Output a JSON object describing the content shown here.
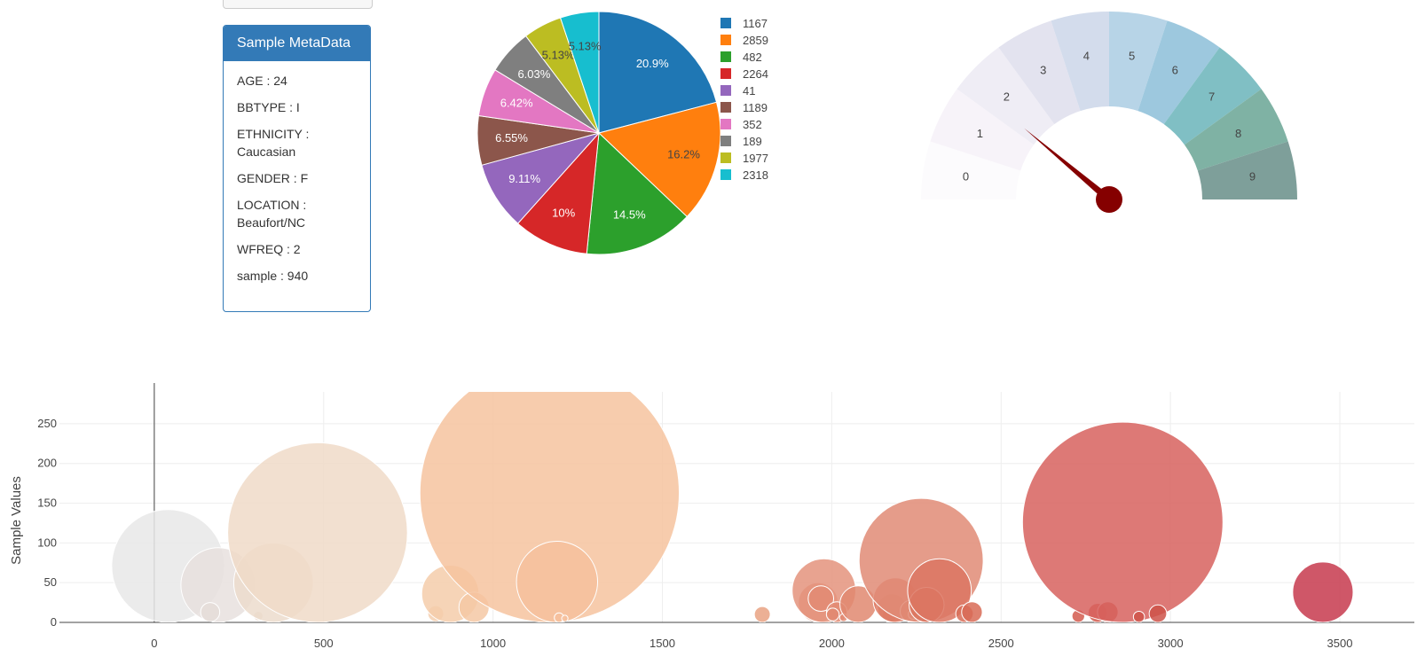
{
  "metadata": {
    "title": "Sample MetaData",
    "rows": [
      {
        "text": "AGE : 24"
      },
      {
        "text": "BBTYPE : I"
      },
      {
        "text": "ETHNICITY : Caucasian"
      },
      {
        "text": "GENDER : F"
      },
      {
        "text": "LOCATION : Beaufort/NC"
      },
      {
        "text": "WFREQ : 2"
      },
      {
        "text": "sample : 940"
      }
    ]
  },
  "chart_data": [
    {
      "type": "pie",
      "labels": [
        "1167",
        "2859",
        "482",
        "2264",
        "41",
        "1189",
        "352",
        "189",
        "1977",
        "2318"
      ],
      "values": [
        163,
        126,
        113,
        78,
        71,
        51,
        50,
        47,
        40,
        40
      ],
      "percent_labels": [
        "20.9%",
        "16.2%",
        "14.5%",
        "10%",
        "9.11%",
        "6.55%",
        "6.42%",
        "6.03%",
        "5.13%",
        "5.13%"
      ],
      "colors": [
        "#1f77b4",
        "#ff7f0e",
        "#2ca02c",
        "#d62728",
        "#9467bd",
        "#8c564b",
        "#e377c2",
        "#7f7f7f",
        "#bcbd22",
        "#17becf"
      ],
      "legend": "right"
    },
    {
      "type": "gauge",
      "value": 2,
      "range": [
        0,
        9
      ],
      "segments": [
        "0",
        "1",
        "2",
        "3",
        "4",
        "5",
        "6",
        "7",
        "8",
        "9"
      ],
      "segment_colors": [
        "#fcfbfd",
        "#f7f3f9",
        "#efedf5",
        "#e3e3ef",
        "#d3dcec",
        "#b7d4e7",
        "#9dc8de",
        "#80bfc4",
        "#7fb2a4",
        "#7e9f9a"
      ],
      "needle_color": "#850000"
    },
    {
      "type": "scatter",
      "ylabel": "Sample Values",
      "xlim": [
        -280,
        3720
      ],
      "ylim": [
        0,
        290
      ],
      "xticks": [
        0,
        500,
        1000,
        1500,
        2000,
        2500,
        3000,
        3500
      ],
      "yticks": [
        0,
        50,
        100,
        150,
        200,
        250
      ],
      "grid": true,
      "points": [
        {
          "x": 41,
          "y": 71,
          "r": 71,
          "color": "#e8e8e8"
        },
        {
          "x": 189,
          "y": 47,
          "r": 47,
          "color": "#e7e1de"
        },
        {
          "x": 165,
          "y": 13,
          "r": 12,
          "color": "#e5ddd8"
        },
        {
          "x": 307,
          "y": 8,
          "r": 6,
          "color": "#e8d6c9"
        },
        {
          "x": 352,
          "y": 50,
          "r": 50,
          "color": "#ecdccd"
        },
        {
          "x": 482,
          "y": 113,
          "r": 113,
          "color": "#f0dac8"
        },
        {
          "x": 831,
          "y": 11,
          "r": 10,
          "color": "#f5cfaf"
        },
        {
          "x": 874,
          "y": 36,
          "r": 36,
          "color": "#f5ccaa"
        },
        {
          "x": 944,
          "y": 19,
          "r": 19,
          "color": "#f4c8a4"
        },
        {
          "x": 1167,
          "y": 163,
          "r": 163,
          "color": "#f6c39f"
        },
        {
          "x": 1189,
          "y": 51,
          "r": 51,
          "color": "#f6c09c"
        },
        {
          "x": 1195,
          "y": 6,
          "r": 6,
          "color": "#f6c09c"
        },
        {
          "x": 1212,
          "y": 5,
          "r": 4,
          "color": "#f6c09c"
        },
        {
          "x": 1795,
          "y": 10,
          "r": 10,
          "color": "#e9a282"
        },
        {
          "x": 1960,
          "y": 25,
          "r": 25,
          "color": "#e59078"
        },
        {
          "x": 1977,
          "y": 40,
          "r": 40,
          "color": "#e4937c"
        },
        {
          "x": 1968,
          "y": 30,
          "r": 16,
          "color": "#e38b73"
        },
        {
          "x": 2015,
          "y": 13,
          "r": 13,
          "color": "#e38b73"
        },
        {
          "x": 2003,
          "y": 10,
          "r": 8,
          "color": "#e28a72"
        },
        {
          "x": 2035,
          "y": 6,
          "r": 5,
          "color": "#e28a72"
        },
        {
          "x": 2078,
          "y": 23,
          "r": 23,
          "color": "#e18870"
        },
        {
          "x": 2170,
          "y": 9,
          "r": 9,
          "color": "#df8068"
        },
        {
          "x": 2178,
          "y": 18,
          "r": 18,
          "color": "#de7f67"
        },
        {
          "x": 2188,
          "y": 28,
          "r": 28,
          "color": "#de7d66"
        },
        {
          "x": 2235,
          "y": 14,
          "r": 14,
          "color": "#dd7b64"
        },
        {
          "x": 2240,
          "y": 10,
          "r": 6,
          "color": "#dd7a63"
        },
        {
          "x": 2264,
          "y": 78,
          "r": 78,
          "color": "#e08b75"
        },
        {
          "x": 2280,
          "y": 22,
          "r": 22,
          "color": "#db765f"
        },
        {
          "x": 2318,
          "y": 40,
          "r": 40,
          "color": "#dc7662"
        },
        {
          "x": 2392,
          "y": 11,
          "r": 11,
          "color": "#d86d58"
        },
        {
          "x": 2414,
          "y": 13,
          "r": 13,
          "color": "#d86b56"
        },
        {
          "x": 2728,
          "y": 8,
          "r": 8,
          "color": "#d35b4e"
        },
        {
          "x": 2785,
          "y": 12,
          "r": 12,
          "color": "#d25a4d"
        },
        {
          "x": 2815,
          "y": 13,
          "r": 13,
          "color": "#d1584c"
        },
        {
          "x": 2859,
          "y": 126,
          "r": 126,
          "color": "#d7625e"
        },
        {
          "x": 2907,
          "y": 7,
          "r": 7,
          "color": "#cf544a"
        },
        {
          "x": 2963,
          "y": 11,
          "r": 11,
          "color": "#ce5249"
        },
        {
          "x": 3450,
          "y": 38,
          "r": 38,
          "color": "#c73a4d"
        }
      ]
    }
  ]
}
